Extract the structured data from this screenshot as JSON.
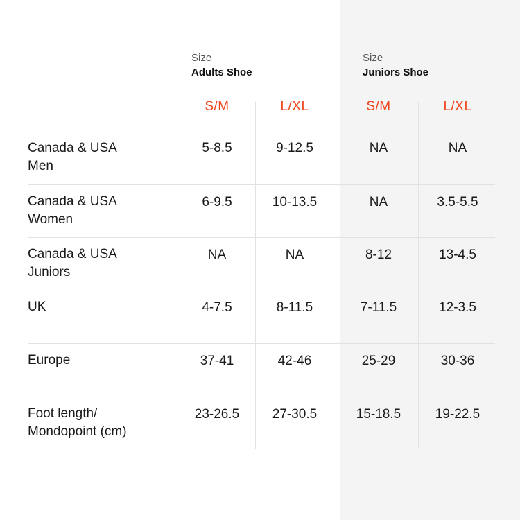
{
  "groups": [
    {
      "caption": "Size",
      "name": "Adults Shoe"
    },
    {
      "caption": "Size",
      "name": "Juniors Shoe"
    }
  ],
  "columns": [
    "S/M",
    "L/XL",
    "S/M",
    "L/XL"
  ],
  "accent_color": "#f0431c",
  "rows": [
    {
      "label": [
        "Canada & USA",
        "Men"
      ],
      "values": [
        "5-8.5",
        "9-12.5",
        "NA",
        "NA"
      ]
    },
    {
      "label": [
        "Canada & USA",
        "Women"
      ],
      "values": [
        "6-9.5",
        "10-13.5",
        "NA",
        "3.5-5.5"
      ]
    },
    {
      "label": [
        "Canada & USA",
        "Juniors"
      ],
      "values": [
        "NA",
        "NA",
        "8-12",
        "13-4.5"
      ]
    },
    {
      "label": [
        "UK"
      ],
      "values": [
        "4-7.5",
        "8-11.5",
        "7-11.5",
        "12-3.5"
      ]
    },
    {
      "label": [
        "Europe"
      ],
      "values": [
        "37-41",
        "42-46",
        "25-29",
        "30-36"
      ]
    },
    {
      "label": [
        "Foot length/",
        "Mondopoint (cm)"
      ],
      "values": [
        "23-26.5",
        "27-30.5",
        "15-18.5",
        "19-22.5"
      ]
    }
  ]
}
